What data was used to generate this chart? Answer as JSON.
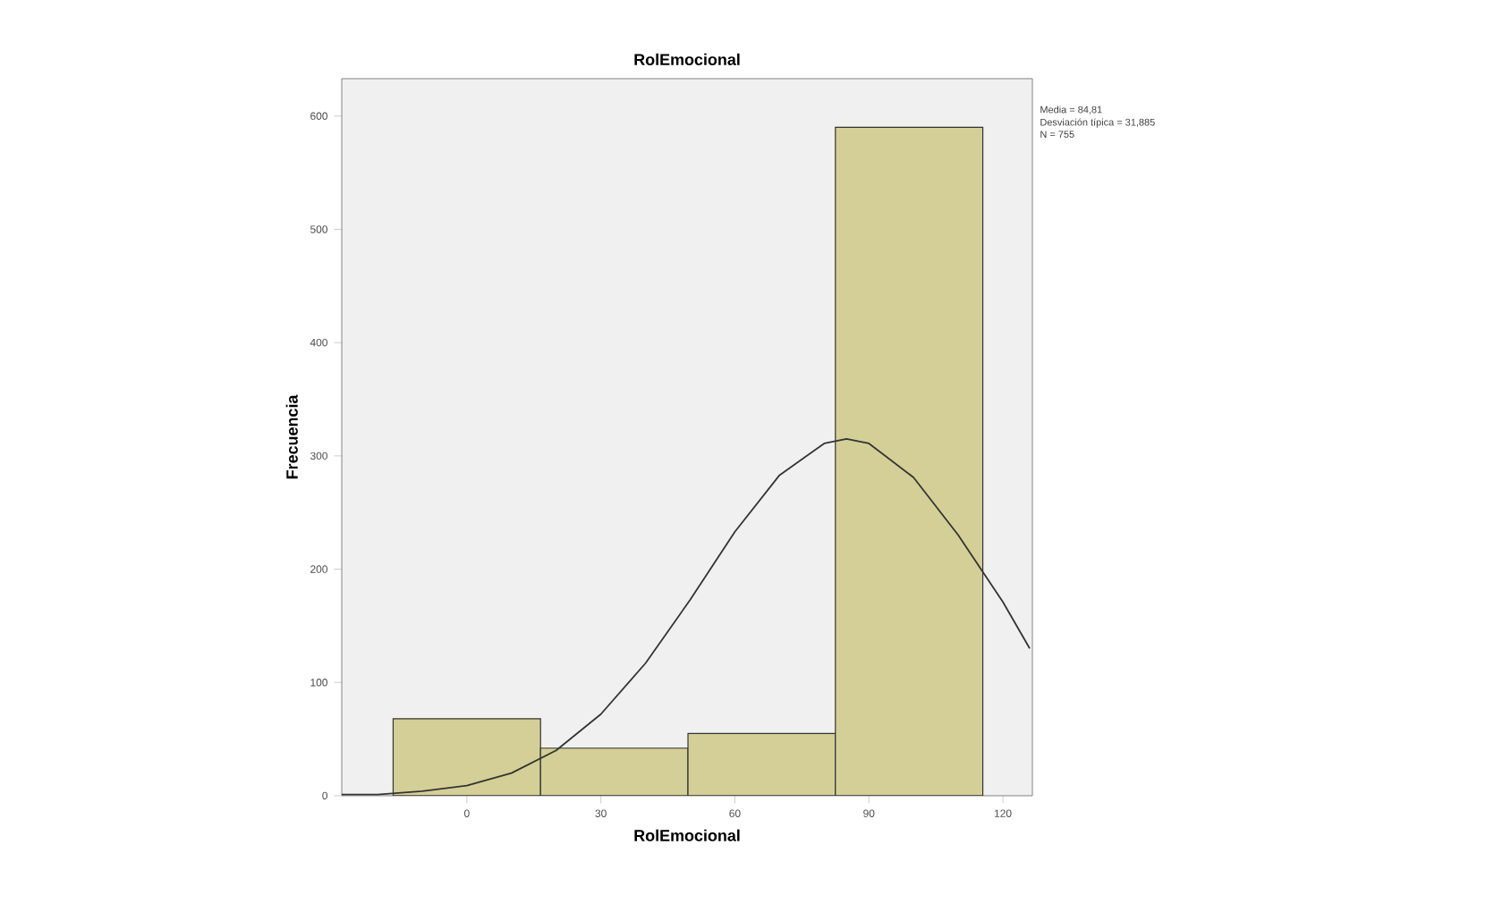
{
  "chart_data": {
    "type": "histogram",
    "title": "RolEmocional",
    "xlabel": "RolEmocional",
    "ylabel": "Frecuencia",
    "bins": [
      -16.5,
      16.5,
      49.5,
      82.5,
      115.5
    ],
    "values": [
      68,
      42,
      55,
      590
    ],
    "color": "#d4cf96",
    "series": [
      {
        "type": "line",
        "color": "#333333",
        "x": [
          -28,
          -20,
          -10,
          0,
          10,
          20,
          30,
          40,
          50,
          60,
          70,
          80,
          85,
          90,
          100,
          110,
          120,
          126
        ],
        "values": [
          1,
          1,
          4,
          9,
          20,
          40,
          72,
          117,
          173,
          233,
          283,
          311,
          315,
          311,
          281,
          230,
          171,
          130
        ]
      }
    ],
    "xlim": [
      -28,
      126.6
    ],
    "ylim": [
      0,
      633
    ],
    "xticks": [
      0,
      30,
      60,
      90,
      120
    ],
    "yticks": [
      0,
      100,
      200,
      300,
      400,
      500,
      600
    ],
    "annotations": [
      "Media = 84,81",
      "Desviación típica = 31,885",
      "N = 755"
    ]
  }
}
